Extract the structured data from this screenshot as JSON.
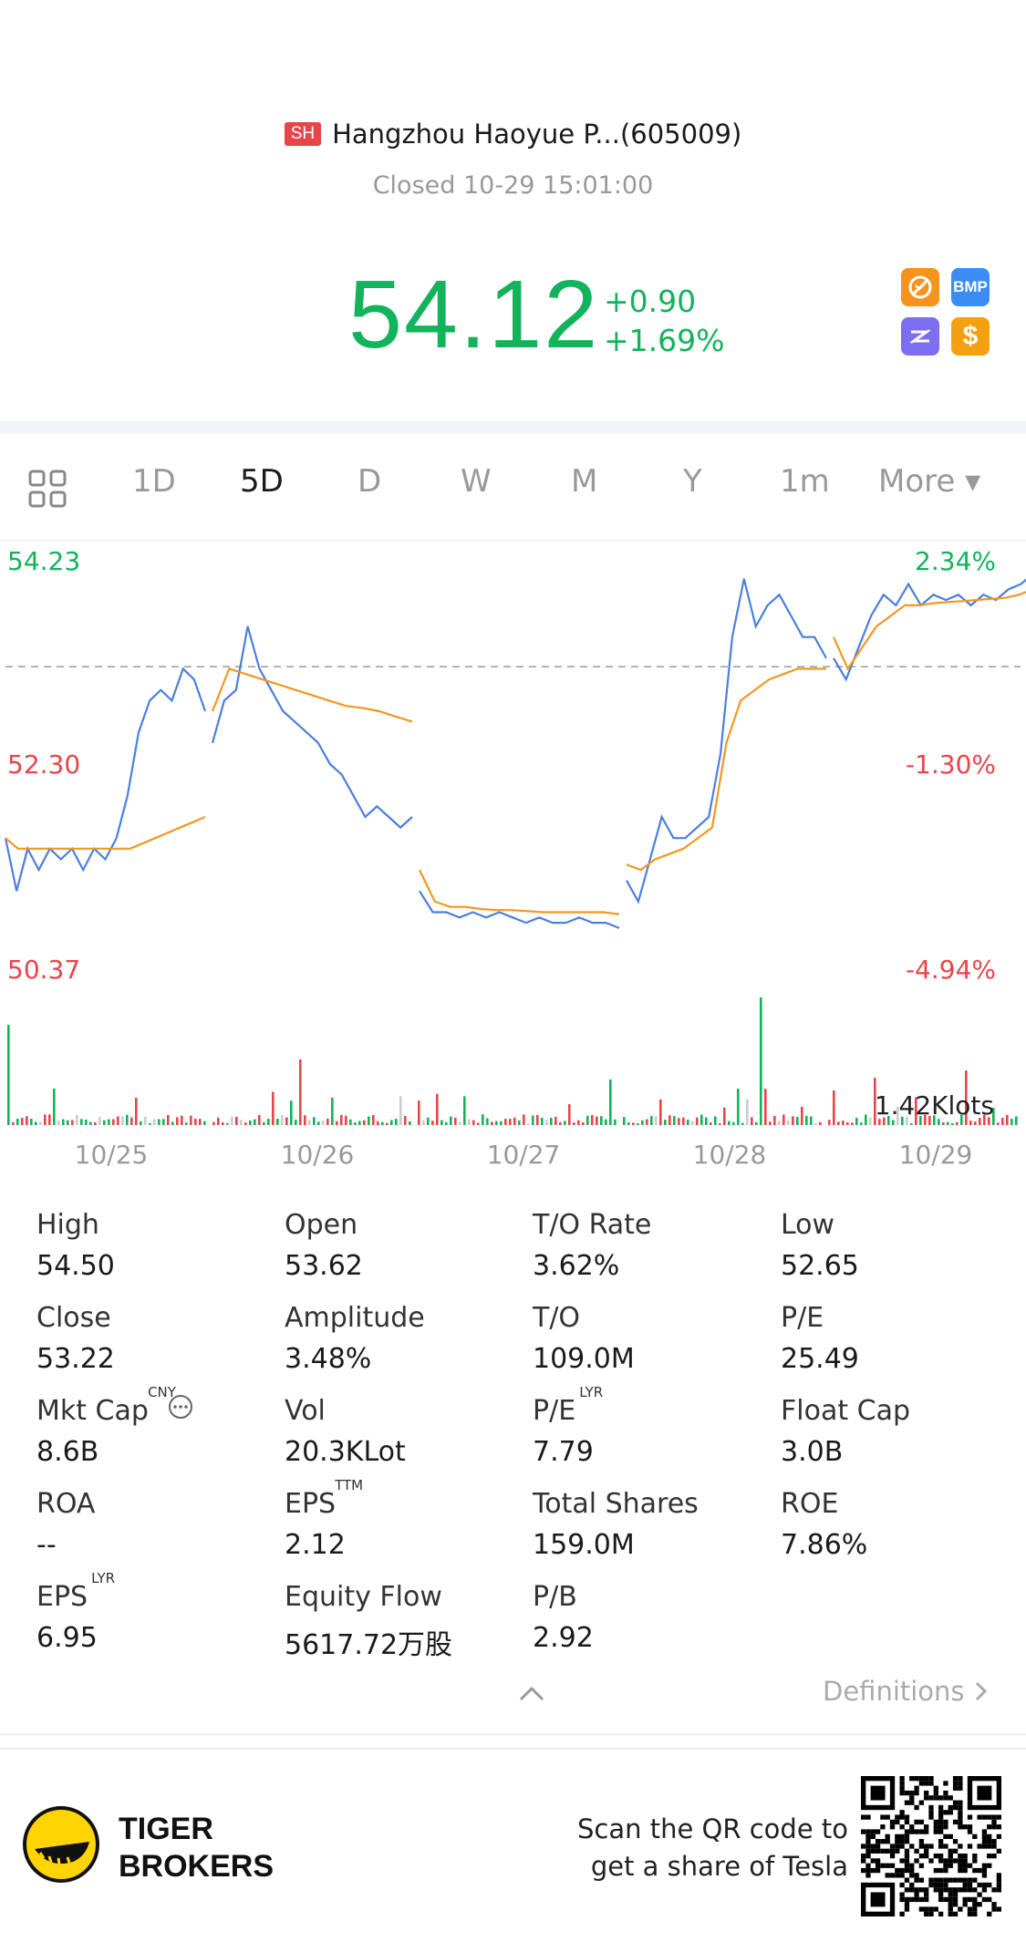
{
  "header": {
    "market": "SH",
    "name": "Hangzhou Haoyue P...(605009)",
    "status": "Closed 10-29 15:01:00",
    "price": "54.12",
    "change": "+0.90",
    "change_pct": "+1.69%",
    "tags": [
      {
        "icon": "no-short-icon",
        "text": "",
        "color": "#f5931d"
      },
      {
        "icon": "bmp-icon",
        "text": "BMP",
        "color": "#3b8cf3"
      },
      {
        "icon": "zz-icon",
        "text": "",
        "color": "#7b6ff0"
      },
      {
        "icon": "dollar-icon",
        "text": "$",
        "color": "#f5a00e"
      }
    ]
  },
  "tabs": [
    "1D",
    "5D",
    "D",
    "W",
    "M",
    "Y",
    "1m",
    "More ▾"
  ],
  "active_tab": "5D",
  "chart_data": {
    "type": "line",
    "y_left_labels": [
      "54.23",
      "52.30",
      "50.37"
    ],
    "y_right_labels": [
      "2.34%",
      "-1.30%",
      "-4.94%"
    ],
    "x_labels": [
      "10/25",
      "10/26",
      "10/27",
      "10/28",
      "10/29"
    ],
    "volume_label": "1.42Klots",
    "prev_close": 53.22,
    "ylim": [
      50.37,
      54.23
    ],
    "series": [
      {
        "name": "price",
        "color": "#4a7fe0",
        "days": [
          [
            51.6,
            51.1,
            51.5,
            51.3,
            51.5,
            51.4,
            51.5,
            51.3,
            51.5,
            51.4,
            51.6,
            52.0,
            52.6,
            52.9,
            53.0,
            52.9,
            53.2,
            53.1,
            52.8
          ],
          [
            52.5,
            52.9,
            53.0,
            53.6,
            53.2,
            53.0,
            52.8,
            52.7,
            52.6,
            52.5,
            52.3,
            52.2,
            52.0,
            51.8,
            51.9,
            51.8,
            51.7,
            51.8
          ],
          [
            51.1,
            50.9,
            50.9,
            50.85,
            50.9,
            50.85,
            50.9,
            50.85,
            50.8,
            50.85,
            50.8,
            50.8,
            50.85,
            50.8,
            50.8,
            50.75
          ],
          [
            51.2,
            51.0,
            51.4,
            51.8,
            51.6,
            51.6,
            51.7,
            51.8,
            52.4,
            53.5,
            54.05,
            53.6,
            53.8,
            53.9,
            53.7,
            53.5,
            53.5,
            53.3
          ],
          [
            53.3,
            53.1,
            53.4,
            53.7,
            53.9,
            53.8,
            54.0,
            53.8,
            53.9,
            53.85,
            53.9,
            53.8,
            53.9,
            53.85,
            53.95,
            54.0,
            54.1
          ]
        ]
      },
      {
        "name": "avg",
        "color": "#f39722",
        "days": [
          [
            51.6,
            51.5,
            51.5,
            51.5,
            51.5,
            51.5,
            51.5,
            51.5,
            51.5,
            51.5,
            51.5,
            51.55,
            51.6,
            51.65,
            51.7,
            51.75,
            51.8
          ],
          [
            52.8,
            53.2,
            53.15,
            53.1,
            53.05,
            53.0,
            52.95,
            52.9,
            52.85,
            52.83,
            52.8,
            52.75,
            52.7
          ],
          [
            51.3,
            51.0,
            50.95,
            50.95,
            50.93,
            50.92,
            50.92,
            50.91,
            50.9,
            50.9,
            50.9,
            50.9,
            50.9,
            50.88
          ],
          [
            51.35,
            51.3,
            51.4,
            51.45,
            51.5,
            51.6,
            51.7,
            52.5,
            52.9,
            53.0,
            53.1,
            53.15,
            53.2,
            53.2,
            53.2
          ],
          [
            53.5,
            53.2,
            53.4,
            53.6,
            53.7,
            53.8,
            53.8,
            53.82,
            53.83,
            53.84,
            53.85,
            53.86,
            53.87,
            53.9,
            53.95
          ]
        ]
      }
    ],
    "volume": {
      "colors": {
        "up": "#12b35b",
        "down": "#e8454a",
        "flat": "#cccccc"
      }
    }
  },
  "stats": [
    {
      "label": "High",
      "value": "54.50",
      "sup": ""
    },
    {
      "label": "Open",
      "value": "53.62",
      "sup": ""
    },
    {
      "label": "T/O Rate",
      "value": "3.62%",
      "sup": ""
    },
    {
      "label": "Low",
      "value": "52.65",
      "sup": ""
    },
    {
      "label": "Close",
      "value": "53.22",
      "sup": ""
    },
    {
      "label": "Amplitude",
      "value": "3.48%",
      "sup": ""
    },
    {
      "label": "T/O",
      "value": "109.0M",
      "sup": ""
    },
    {
      "label": "P/E",
      "value": "25.49",
      "sup": ""
    },
    {
      "label": "Mkt Cap",
      "value": "8.6B",
      "sup": "CNY"
    },
    {
      "label": "Vol",
      "value": "20.3KLot",
      "sup": ""
    },
    {
      "label": "P/E",
      "value": "7.79",
      "sup": "LYR"
    },
    {
      "label": "Float Cap",
      "value": "3.0B",
      "sup": ""
    },
    {
      "label": "ROA",
      "value": "--",
      "sup": ""
    },
    {
      "label": "EPS",
      "value": "2.12",
      "sup": "TTM"
    },
    {
      "label": "Total Shares",
      "value": "159.0M",
      "sup": ""
    },
    {
      "label": "ROE",
      "value": "7.86%",
      "sup": ""
    },
    {
      "label": "EPS",
      "value": "6.95",
      "sup": "LYR"
    },
    {
      "label": "Equity Flow",
      "value": "5617.72万股",
      "sup": ""
    },
    {
      "label": "P/B",
      "value": "2.92",
      "sup": ""
    }
  ],
  "definitions": "Definitions",
  "footer": {
    "brand_line1": "TIGER",
    "brand_line2": "BROKERS",
    "scan_line1": "Scan the QR code to",
    "scan_line2": "get a share of Tesla"
  }
}
